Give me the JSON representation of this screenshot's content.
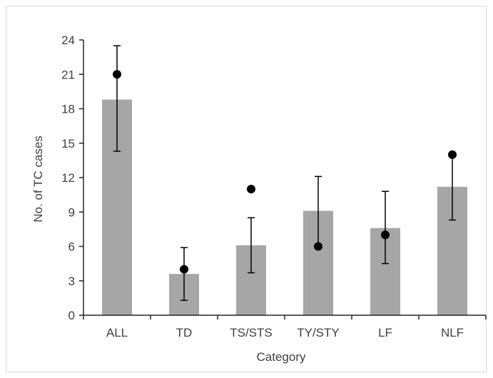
{
  "chart_data": {
    "type": "bar",
    "title": "",
    "xlabel": "Category",
    "ylabel": "No. of TC cases",
    "ylim": [
      0,
      24
    ],
    "yticks": [
      "0",
      "3",
      "6",
      "9",
      "12",
      "15",
      "18",
      "21",
      "24"
    ],
    "grid": false,
    "categories": [
      "ALL",
      "TD",
      "TS/STS",
      "TY/STY",
      "LF",
      "NLF"
    ],
    "series": [
      {
        "kind": "bar",
        "values": [
          18.8,
          3.6,
          6.1,
          9.1,
          7.6,
          11.2
        ],
        "error_low": [
          14.3,
          1.3,
          3.7,
          6.0,
          4.5,
          8.3
        ],
        "error_high": [
          23.5,
          5.9,
          8.5,
          12.1,
          10.8,
          14.0
        ]
      },
      {
        "kind": "point",
        "values": [
          21,
          4,
          11,
          6,
          7,
          14
        ]
      }
    ],
    "colors": {
      "bar": "#a6a6a6",
      "point": "#000000",
      "error_bar": "#000000",
      "axis": "#262626"
    }
  }
}
